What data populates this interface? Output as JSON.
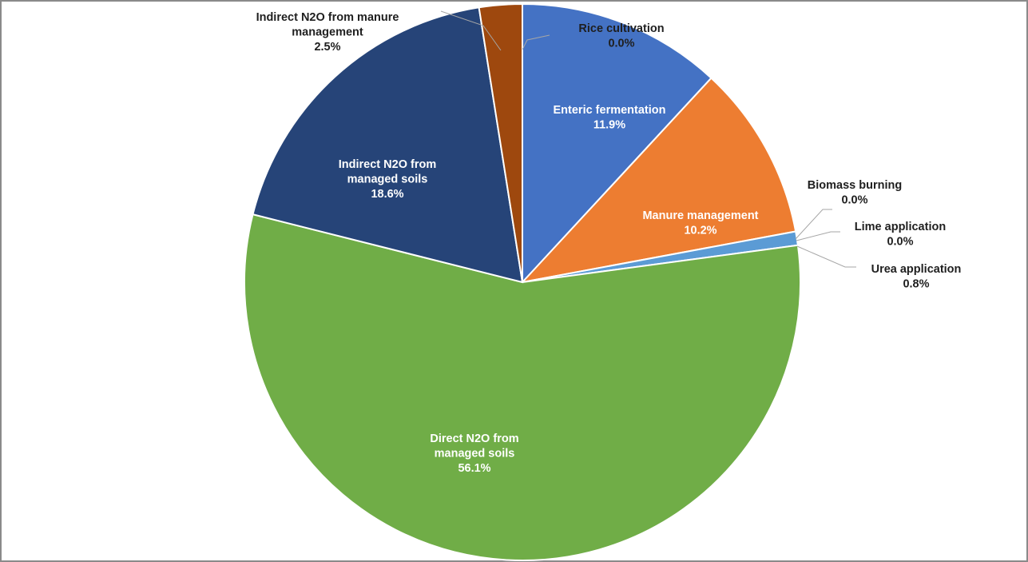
{
  "chart_data": {
    "type": "pie",
    "title": "",
    "slices": [
      {
        "label": "Rice cultivation",
        "value": 0.0,
        "value_label": "0.0%",
        "color": "#4472c4"
      },
      {
        "label": "Enteric fermentation",
        "value": 11.9,
        "value_label": "11.9%",
        "color": "#4472c4"
      },
      {
        "label": "Manure management",
        "value": 10.2,
        "value_label": "10.2%",
        "color": "#ed7d31"
      },
      {
        "label": "Biomass burning",
        "value": 0.0,
        "value_label": "0.0%",
        "color": "#a5a5a5"
      },
      {
        "label": "Lime application",
        "value": 0.0,
        "value_label": "0.0%",
        "color": "#ffc000"
      },
      {
        "label": "Urea application",
        "value": 0.8,
        "value_label": "0.8%",
        "color": "#5b9bd5"
      },
      {
        "label": "Direct N2O from managed soils",
        "value": 56.1,
        "value_label": "56.1%",
        "color": "#70ad47"
      },
      {
        "label": "Indirect N2O from managed soils",
        "value": 18.6,
        "value_label": "18.6%",
        "color": "#264478"
      },
      {
        "label": "Indirect N2O from manure management",
        "value": 2.5,
        "value_label": "2.5%",
        "color": "#9e480e"
      }
    ],
    "legend": "none",
    "data_labels": "on slices and outside with leader lines"
  }
}
